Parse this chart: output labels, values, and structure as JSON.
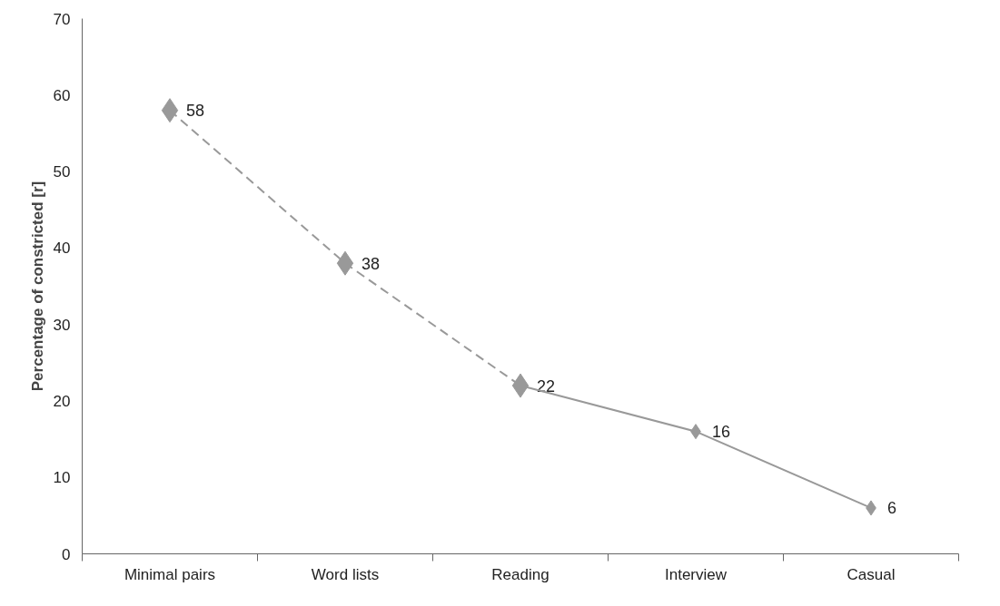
{
  "chart_data": {
    "type": "line",
    "ylabel": "Percentage of constricted [r]",
    "categories": [
      "Minimal pairs",
      "Word lists",
      "Reading",
      "Interview",
      "Casual"
    ],
    "series": [
      {
        "color": "#999999",
        "line_style": "dashed",
        "values": [
          58,
          38,
          22,
          null,
          null
        ],
        "value_labels": [
          "58",
          "38",
          "22",
          null,
          null
        ]
      },
      {
        "color": "#999999",
        "line_style": "solid",
        "values": [
          null,
          null,
          22,
          16,
          6
        ],
        "value_labels": [
          null,
          null,
          null,
          "16",
          "6"
        ]
      }
    ],
    "ylim": [
      0,
      70
    ],
    "yticks": [
      0,
      10,
      20,
      30,
      40,
      50,
      60,
      70
    ],
    "grid": false,
    "marker": "diamond"
  }
}
